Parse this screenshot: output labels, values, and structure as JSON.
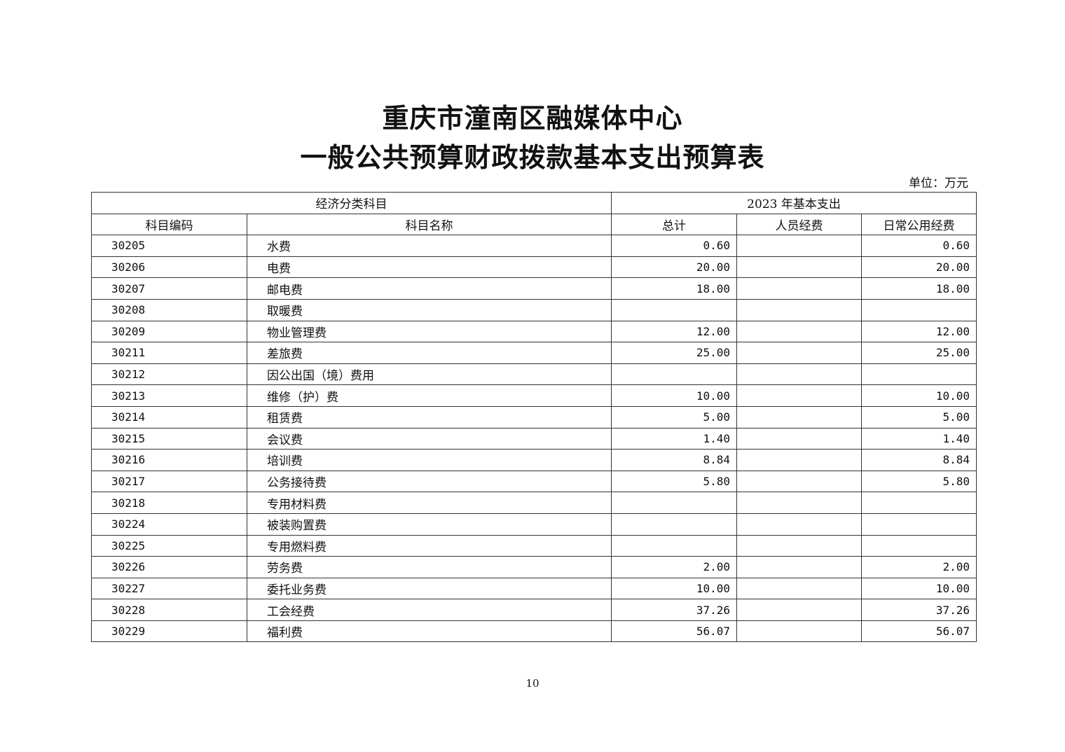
{
  "title_line1": "重庆市潼南区融媒体中心",
  "title_line2": "一般公共预算财政拨款基本支出预算表",
  "unit": "单位：万元",
  "table": {
    "group_headers": [
      "经济分类科目",
      "2023 年基本支出"
    ],
    "columns": [
      "科目编码",
      "科目名称",
      "总计",
      "人员经费",
      "日常公用经费"
    ],
    "rows": [
      {
        "code": "30205",
        "name": "水费",
        "total": "0.60",
        "personnel": "",
        "public": "0.60"
      },
      {
        "code": "30206",
        "name": "电费",
        "total": "20.00",
        "personnel": "",
        "public": "20.00"
      },
      {
        "code": "30207",
        "name": "邮电费",
        "total": "18.00",
        "personnel": "",
        "public": "18.00"
      },
      {
        "code": "30208",
        "name": "取暖费",
        "total": "",
        "personnel": "",
        "public": ""
      },
      {
        "code": "30209",
        "name": "物业管理费",
        "total": "12.00",
        "personnel": "",
        "public": "12.00"
      },
      {
        "code": "30211",
        "name": "差旅费",
        "total": "25.00",
        "personnel": "",
        "public": "25.00"
      },
      {
        "code": "30212",
        "name": "因公出国（境）费用",
        "total": "",
        "personnel": "",
        "public": ""
      },
      {
        "code": "30213",
        "name": "维修（护）费",
        "total": "10.00",
        "personnel": "",
        "public": "10.00"
      },
      {
        "code": "30214",
        "name": "租赁费",
        "total": "5.00",
        "personnel": "",
        "public": "5.00"
      },
      {
        "code": "30215",
        "name": "会议费",
        "total": "1.40",
        "personnel": "",
        "public": "1.40"
      },
      {
        "code": "30216",
        "name": "培训费",
        "total": "8.84",
        "personnel": "",
        "public": "8.84"
      },
      {
        "code": "30217",
        "name": "公务接待费",
        "total": "5.80",
        "personnel": "",
        "public": "5.80"
      },
      {
        "code": "30218",
        "name": "专用材料费",
        "total": "",
        "personnel": "",
        "public": ""
      },
      {
        "code": "30224",
        "name": "被装购置费",
        "total": "",
        "personnel": "",
        "public": ""
      },
      {
        "code": "30225",
        "name": "专用燃料费",
        "total": "",
        "personnel": "",
        "public": ""
      },
      {
        "code": "30226",
        "name": "劳务费",
        "total": "2.00",
        "personnel": "",
        "public": "2.00"
      },
      {
        "code": "30227",
        "name": "委托业务费",
        "total": "10.00",
        "personnel": "",
        "public": "10.00"
      },
      {
        "code": "30228",
        "name": "工会经费",
        "total": "37.26",
        "personnel": "",
        "public": "37.26"
      },
      {
        "code": "30229",
        "name": "福利费",
        "total": "56.07",
        "personnel": "",
        "public": "56.07"
      }
    ]
  },
  "page_number": "10"
}
